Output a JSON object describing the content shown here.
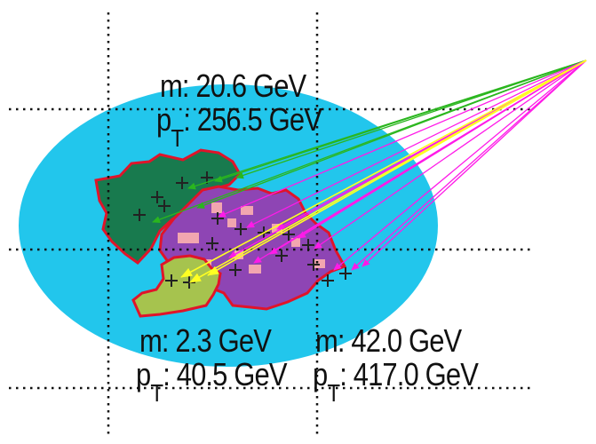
{
  "colors": {
    "event_region": "#22c6ec",
    "jet_green": "#187a4e",
    "jet_purple": "#8e45b4",
    "jet_yellow": "#a6c34e",
    "jet_outline": "#e0142a",
    "pixel_pink": "#f2a6b0",
    "arrow_green": "#2ab61e",
    "arrow_magenta": "#ff1ae8",
    "arrow_yellow": "#ffff22",
    "grid": "#111111"
  },
  "jets": [
    {
      "name": "green-jet",
      "mass_label": "m: 20.6 GeV",
      "pt_prefix": "p",
      "pt_subscript": "T",
      "pt_value": ": 256.5 GeV"
    },
    {
      "name": "yellow-jet",
      "mass_label": "m:  2.3 GeV",
      "pt_prefix": "p",
      "pt_subscript": "T",
      "pt_value": ": 40.5 GeV"
    },
    {
      "name": "purple-jet",
      "mass_label": "m: 42.0 GeV",
      "pt_prefix": "p",
      "pt_subscript": "T",
      "pt_value": ": 417.0 GeV"
    }
  ],
  "icons": {
    "particle_marker": "plus-marker",
    "arrow": "arrow-icon"
  }
}
